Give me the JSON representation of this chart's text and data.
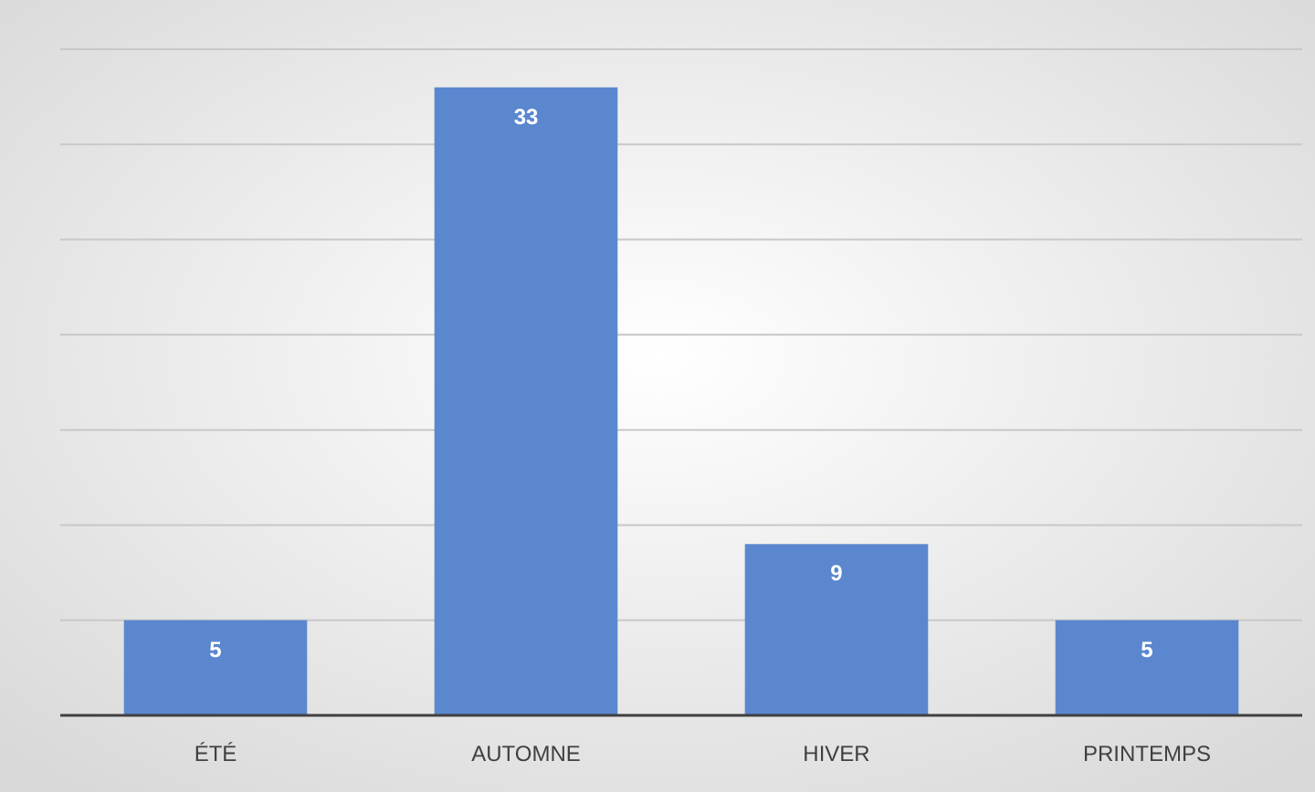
{
  "chart_data": {
    "type": "bar",
    "categories": [
      "ÉTÉ",
      "AUTOMNE",
      "HIVER",
      "PRINTEMPS"
    ],
    "values": [
      5,
      33,
      9,
      5
    ],
    "color": "#5b87cf",
    "data_labels": true,
    "ylim": [
      0,
      35
    ],
    "yticks": [
      {
        "value": 0,
        "label": null
      },
      {
        "value": 5,
        "label": null
      },
      {
        "value": 10,
        "label": null
      },
      {
        "value": 15,
        "label": null
      },
      {
        "value": 20,
        "label": null
      },
      {
        "value": 25,
        "label": null
      },
      {
        "value": 30,
        "label": null
      },
      {
        "value": 35,
        "label": null
      }
    ],
    "tick_labels": "x",
    "grid": "y"
  }
}
